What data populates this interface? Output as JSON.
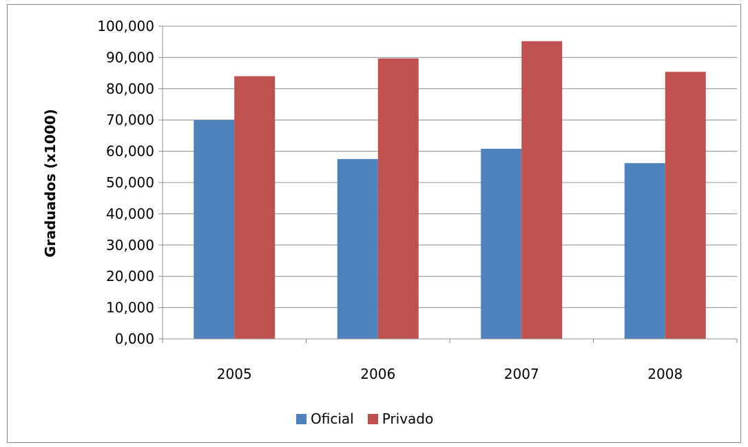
{
  "chart_data": {
    "type": "bar",
    "categories": [
      "2005",
      "2006",
      "2007",
      "2008"
    ],
    "series": [
      {
        "name": "Oficial",
        "color": "#4f81bd",
        "values": [
          70.0,
          57.5,
          60.8,
          56.2
        ]
      },
      {
        "name": "Privado",
        "color": "#c0504d",
        "values": [
          84.0,
          89.7,
          95.2,
          85.4
        ]
      }
    ],
    "ylabel": "Graduados (x1000)",
    "ylim": [
      0,
      100
    ],
    "yticks": [
      0,
      10,
      20,
      30,
      40,
      50,
      60,
      70,
      80,
      90,
      100
    ],
    "ytick_labels": [
      "0,000",
      "10,000",
      "20,000",
      "30,000",
      "40,000",
      "50,000",
      "60,000",
      "70,000",
      "80,000",
      "90,000",
      "100,000"
    ],
    "grid": true,
    "legend_position": "bottom"
  }
}
